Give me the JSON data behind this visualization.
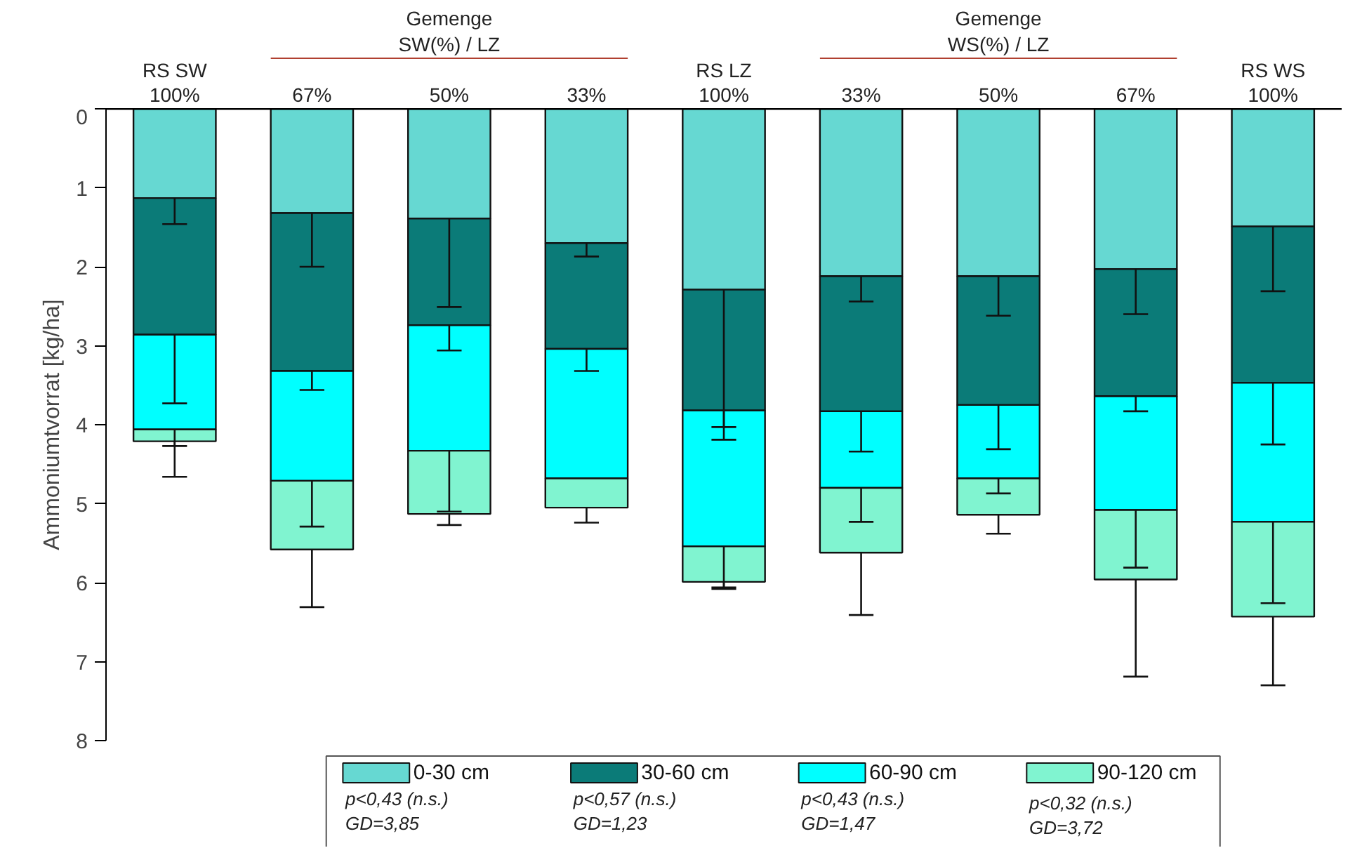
{
  "chart_data": {
    "type": "bar",
    "stacked": true,
    "ylabel": "Ammoniumtvorrat [kg/ha]",
    "categories": [
      "RS SW\n100%",
      "67%",
      "50%",
      "33%",
      "RS LZ\n100%",
      "33%",
      "50%",
      "67%",
      "RS WS\n100%"
    ],
    "series": [
      {
        "name": "0-30 cm",
        "color": "#66d8d2",
        "values": [
          1.13,
          1.32,
          1.39,
          1.7,
          2.29,
          2.12,
          2.12,
          2.03,
          1.49
        ],
        "errors": [
          [
            1.13,
            1.46
          ],
          [
            1.32,
            2.0
          ],
          [
            1.39,
            2.51
          ],
          [
            1.7,
            1.87
          ],
          [
            2.29,
            4.03
          ],
          [
            2.12,
            2.44
          ],
          [
            2.12,
            2.62
          ],
          [
            2.03,
            2.6
          ],
          [
            1.49,
            2.31
          ]
        ]
      },
      {
        "name": "30-60 cm",
        "color": "#0b7b78",
        "values": [
          1.73,
          2.0,
          1.35,
          1.34,
          1.53,
          1.71,
          1.63,
          1.61,
          1.98
        ],
        "errors": [
          [
            2.86,
            3.73
          ],
          [
            3.32,
            3.56
          ],
          [
            2.74,
            3.06
          ],
          [
            3.04,
            3.32
          ],
          [
            3.82,
            4.19
          ],
          [
            3.83,
            4.34
          ],
          [
            3.75,
            4.31
          ],
          [
            3.64,
            3.83
          ],
          [
            3.47,
            4.25
          ]
        ]
      },
      {
        "name": "60-90 cm",
        "color": "#00ffff",
        "values": [
          1.2,
          1.39,
          1.59,
          1.64,
          1.72,
          0.97,
          0.93,
          1.44,
          1.76
        ],
        "errors": [
          [
            4.06,
            4.27
          ],
          [
            4.71,
            5.29
          ],
          [
            4.33,
            5.1
          ],
          null,
          [
            5.54,
            6.06
          ],
          [
            4.8,
            5.23
          ],
          [
            4.68,
            4.87
          ],
          [
            5.08,
            5.81
          ],
          [
            5.23,
            6.26
          ]
        ]
      },
      {
        "name": "90-120 cm",
        "color": "#80f4d0",
        "values": [
          0.15,
          0.87,
          0.8,
          0.37,
          0.45,
          0.82,
          0.46,
          0.88,
          1.2
        ],
        "errors": [
          [
            4.21,
            4.66
          ],
          [
            5.58,
            6.31
          ],
          [
            5.13,
            5.27
          ],
          [
            5.05,
            5.24
          ],
          [
            5.99,
            6.08
          ],
          [
            5.62,
            6.41
          ],
          [
            5.14,
            5.38
          ],
          [
            5.96,
            7.19
          ],
          [
            6.43,
            7.3
          ]
        ]
      }
    ],
    "ylim": [
      8,
      0
    ],
    "yticks": [
      0,
      1,
      2,
      3,
      4,
      5,
      6,
      7,
      8
    ],
    "grid": false,
    "legend": "bottom",
    "annotations": [
      "Gemenge\nSW(%) / LZ",
      "Gemenge\nWS(%) / LZ",
      "p<0,43 (n.s.)\nGD=3,85",
      "p<0,57 (n.s.)\nGD=1,23",
      "p<0,43 (n.s.)\nGD=1,47",
      "p<0,32 (n.s.)\nGD=3,72"
    ]
  }
}
